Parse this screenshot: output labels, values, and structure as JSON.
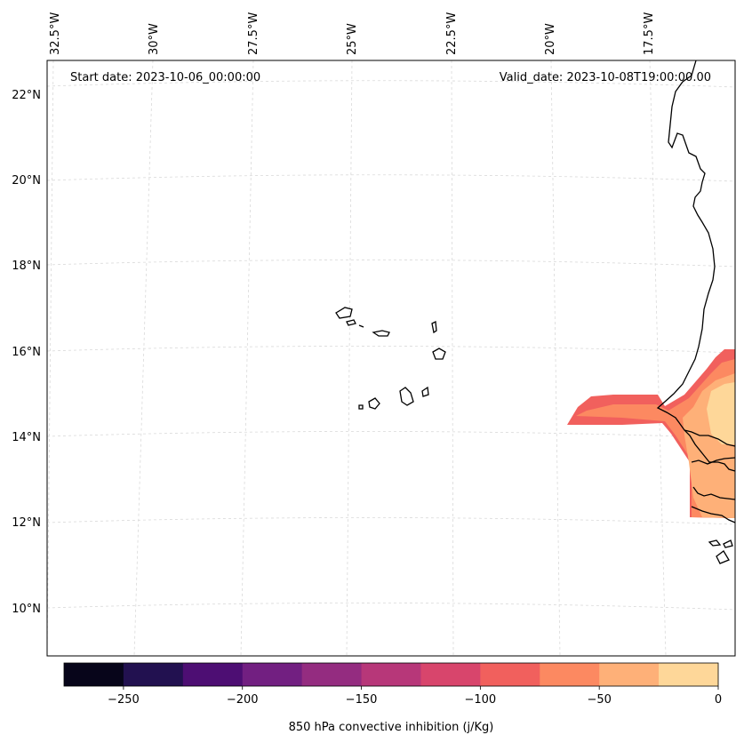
{
  "map": {
    "start_label": "Start date: 2023-10-06_00:00:00",
    "valid_label": "Valid_date: 2023-10-08T19:00:00.00",
    "lon_labels": [
      "32.5°W",
      "30°W",
      "27.5°W",
      "25°W",
      "22.5°W",
      "20°W",
      "17.5°W"
    ],
    "lat_labels": [
      "22°N",
      "20°N",
      "18°N",
      "16°N",
      "14°N",
      "12°N",
      "10°N"
    ],
    "field_name": "850 hPa convective inhibition",
    "gridlines": true
  },
  "colorbar": {
    "label": "850 hPa convective inhibition (j/Kg)",
    "ticks": [
      "−250",
      "−200",
      "−150",
      "−100",
      "−50",
      "0"
    ],
    "range": [
      -275,
      0
    ],
    "levels": [
      -275,
      -250,
      -225,
      -200,
      -175,
      -150,
      -125,
      -100,
      -75,
      -50,
      -25,
      0
    ],
    "colors": [
      "#07051a",
      "#221150",
      "#4d0e73",
      "#721f81",
      "#942c80",
      "#b73779",
      "#d8456c",
      "#f1605d",
      "#fc8961",
      "#feb078",
      "#fed799",
      "#fcebaa"
    ]
  },
  "features": {
    "coastline_color": "#000000",
    "fill_bands": [
      "−100 to −75",
      "−75 to −50",
      "−50 to −25",
      "−25 to 0"
    ]
  }
}
